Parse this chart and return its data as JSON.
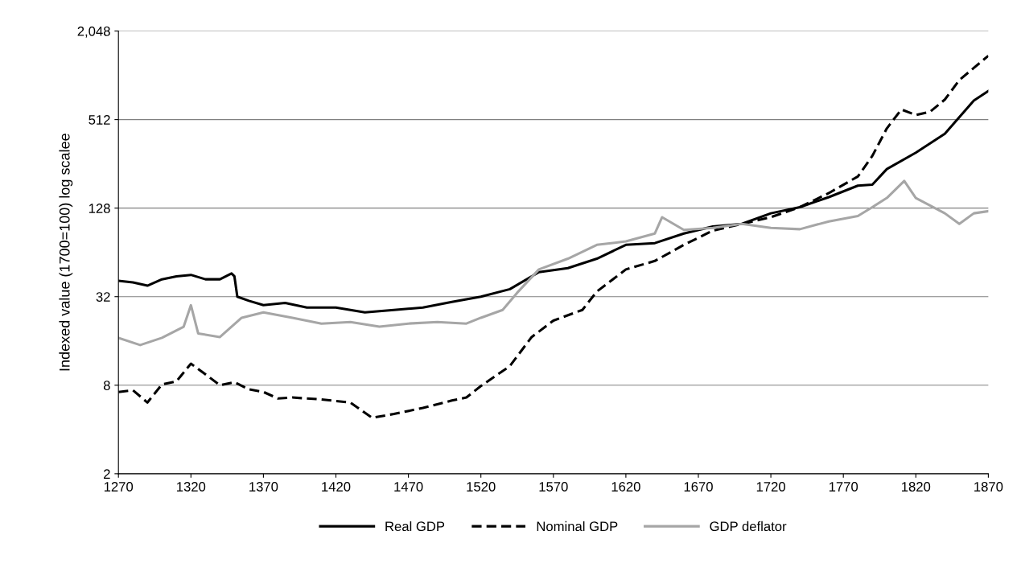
{
  "chart_data": {
    "type": "line",
    "ylabel": "Indexed value (1700=100) log scalee",
    "log": "y",
    "grid": "y",
    "legend": "bottom",
    "marker": "none",
    "xlim": [
      1270,
      1870
    ],
    "xticks": [
      1270,
      1320,
      1370,
      1420,
      1470,
      1520,
      1570,
      1620,
      1670,
      1720,
      1770,
      1820,
      1870
    ],
    "ylim": [
      2,
      2048
    ],
    "yticks": [
      2,
      8,
      32,
      128,
      512,
      {
        "value": 2048,
        "label": "2,048"
      }
    ],
    "series": [
      {
        "name": "Real GDP",
        "color": "#000000",
        "line_style": "solid",
        "x": [
          1270,
          1280,
          1290,
          1300,
          1310,
          1320,
          1330,
          1340,
          1348,
          1350,
          1352,
          1360,
          1370,
          1385,
          1400,
          1420,
          1440,
          1460,
          1480,
          1500,
          1520,
          1540,
          1560,
          1580,
          1600,
          1620,
          1640,
          1660,
          1680,
          1700,
          1720,
          1740,
          1760,
          1780,
          1790,
          1800,
          1820,
          1840,
          1860,
          1870
        ],
        "values": [
          41,
          40,
          38,
          42,
          44,
          45,
          42,
          42,
          46,
          44,
          32,
          30,
          28,
          29,
          27,
          27,
          25,
          26,
          27,
          29.5,
          32,
          36,
          47,
          50,
          58,
          72,
          74,
          86,
          96,
          100,
          118,
          130,
          152,
          182,
          185,
          236,
          305,
          410,
          690,
          800
        ]
      },
      {
        "name": "Nominal GDP",
        "color": "#000000",
        "line_style": "dashed",
        "x": [
          1270,
          1280,
          1290,
          1300,
          1310,
          1320,
          1330,
          1340,
          1350,
          1360,
          1370,
          1380,
          1390,
          1410,
          1430,
          1445,
          1460,
          1480,
          1500,
          1510,
          1520,
          1540,
          1555,
          1570,
          1590,
          1600,
          1620,
          1640,
          1660,
          1680,
          1700,
          1720,
          1740,
          1760,
          1780,
          1790,
          1800,
          1810,
          1820,
          1830,
          1840,
          1850,
          1860,
          1870
        ],
        "values": [
          7.2,
          7.4,
          6.1,
          8.1,
          8.5,
          11.2,
          9.5,
          8.0,
          8.4,
          7.5,
          7.2,
          6.5,
          6.6,
          6.4,
          6.1,
          4.8,
          5.1,
          5.6,
          6.3,
          6.6,
          7.9,
          10.8,
          17,
          22,
          26,
          34.7,
          49,
          56,
          72,
          90,
          100,
          111,
          130,
          162,
          210,
          290,
          446,
          600,
          550,
          580,
          700,
          950,
          1150,
          1390
        ]
      },
      {
        "name": "GDP deflator",
        "color": "#a6a6a6",
        "line_style": "solid",
        "x": [
          1270,
          1285,
          1300,
          1315,
          1320,
          1325,
          1340,
          1355,
          1370,
          1390,
          1410,
          1430,
          1450,
          1470,
          1490,
          1510,
          1520,
          1535,
          1545,
          1560,
          1580,
          1600,
          1620,
          1640,
          1645,
          1660,
          1680,
          1700,
          1720,
          1740,
          1760,
          1780,
          1790,
          1800,
          1812,
          1820,
          1840,
          1850,
          1860,
          1870
        ],
        "values": [
          16.8,
          15,
          16.8,
          20,
          28,
          18,
          17,
          23,
          25,
          23,
          21,
          21.5,
          20,
          21,
          21.5,
          21,
          23,
          26,
          34,
          49,
          58,
          72,
          76,
          86,
          111,
          91,
          94,
          100,
          94,
          92,
          104,
          113,
          130,
          150,
          196,
          150,
          118,
          100,
          118,
          122
        ]
      }
    ]
  }
}
